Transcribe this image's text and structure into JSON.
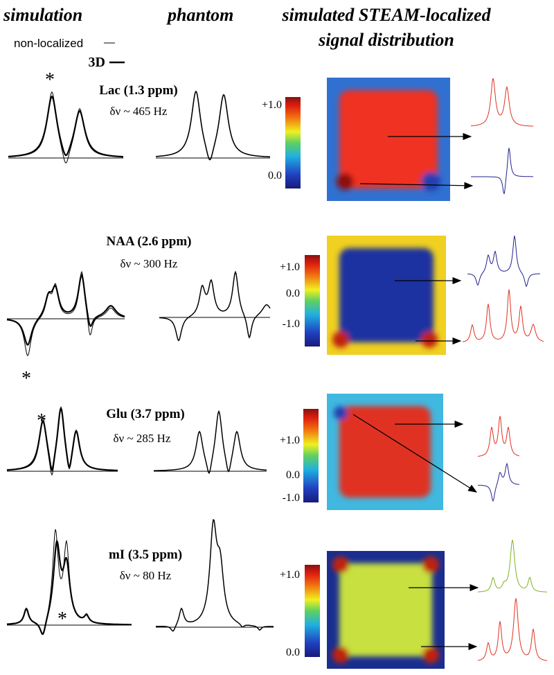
{
  "headers": {
    "simulation": "simulation",
    "phantom": "phantom",
    "map": [
      "simulated STEAM-localized",
      "signal distribution"
    ]
  },
  "legend": [
    "non-localized",
    "3D"
  ],
  "rows": [
    {
      "label": "Lac (1.3 ppm)",
      "shift": "δν ~ 465 Hz",
      "marker": "*",
      "colorbar": [
        "+1.0",
        "0.0"
      ]
    },
    {
      "label": "NAA (2.6 ppm)",
      "shift": "δν ~ 300 Hz",
      "marker": "*",
      "colorbar": [
        "+1.0",
        "0.0",
        "-1.0"
      ]
    },
    {
      "label": "Glu (3.7 ppm)",
      "shift": "δν ~ 285 Hz",
      "marker": "*",
      "colorbar": [
        "+1.0",
        "0.0",
        "-1.0"
      ]
    },
    {
      "label": "mI (3.5 ppm)",
      "shift": "δν ~ 80 Hz",
      "marker": "*",
      "colorbar": [
        "+1.0",
        "0.0"
      ]
    }
  ]
}
